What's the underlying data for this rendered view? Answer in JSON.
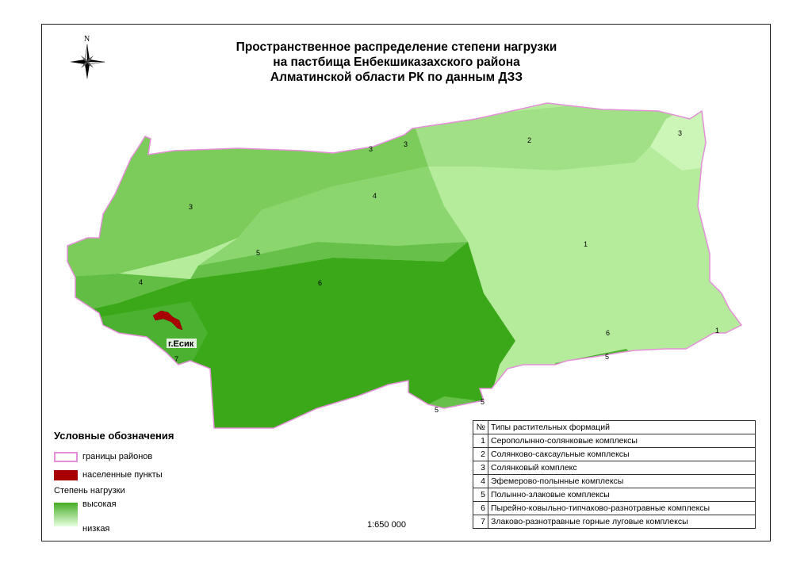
{
  "title": [
    "Пространственное распределение степени нагрузки",
    "на пастбища Енбекшиказахского района",
    "Алматинской области РК по данным ДЗЗ"
  ],
  "north_arrow": {
    "label": "N",
    "icon": "compass-rose-icon"
  },
  "map_labels": {
    "city": "г.Есик",
    "zones": [
      "1",
      "1",
      "2",
      "3",
      "3",
      "3",
      "3",
      "4",
      "4",
      "5",
      "5",
      "5",
      "5",
      "6",
      "6",
      "7"
    ]
  },
  "colors": {
    "boundary": "#e48fd8",
    "settlement": "#a80000",
    "high": "#3aa818",
    "low": "#c8f5b4"
  },
  "legend": {
    "title": "Условные обозначения",
    "boundaries": "границы районов",
    "settlements": "населенные пункты",
    "load_title": "Степень нагрузки",
    "high": "высокая",
    "low": "низкая"
  },
  "table": {
    "header": {
      "num": "№",
      "name": "Типы растительных формаций"
    },
    "rows": [
      {
        "num": "1",
        "name": "Серополынно-солянковые комплексы"
      },
      {
        "num": "2",
        "name": "Солянково-саксаульные комплексы"
      },
      {
        "num": "3",
        "name": "Солянковый комплекс"
      },
      {
        "num": "4",
        "name": "Эфемерово-полынные комплексы"
      },
      {
        "num": "5",
        "name": "Полынно-злаковые комплексы"
      },
      {
        "num": "6",
        "name": "Пырейно-ковыльно-типчаково-разнотравные комплексы"
      },
      {
        "num": "7",
        "name": "Злаково-разнотравные горные луговые комплексы"
      }
    ]
  },
  "scale": "1:650 000"
}
